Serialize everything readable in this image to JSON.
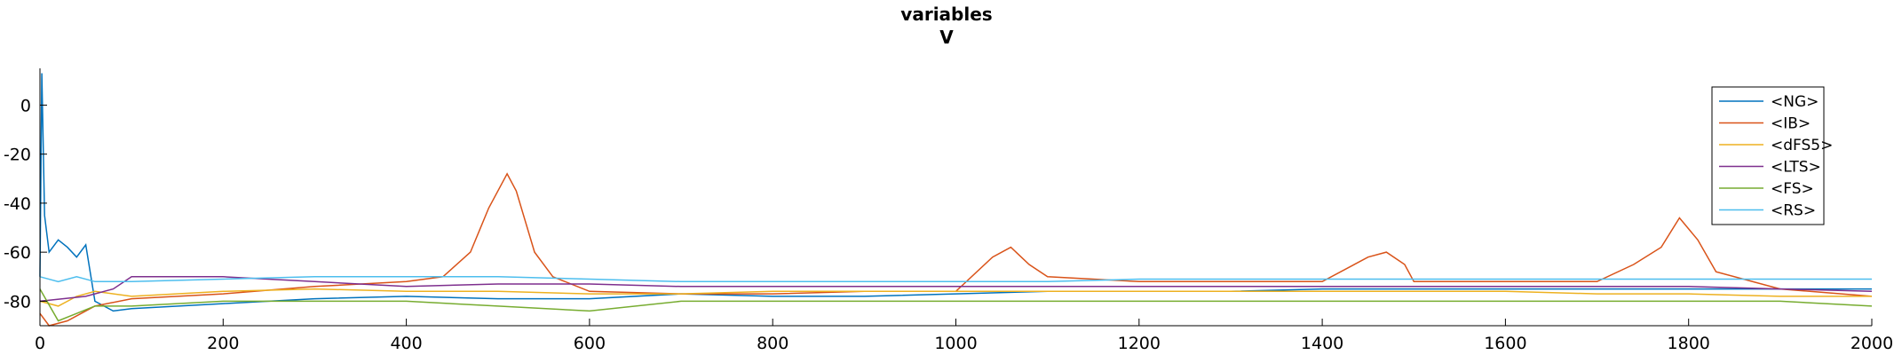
{
  "chart_data": {
    "type": "line",
    "title": "variables",
    "subtitle": "V",
    "xlabel": "",
    "ylabel": "",
    "xlim": [
      0,
      2000
    ],
    "ylim": [
      -90,
      15
    ],
    "xticks": [
      0,
      200,
      400,
      600,
      800,
      1000,
      1200,
      1400,
      1600,
      1800,
      2000
    ],
    "yticks": [
      -80,
      -60,
      -40,
      -20,
      0
    ],
    "ytick_labels": [
      "-80",
      "-60",
      "-40",
      "-20",
      "0"
    ],
    "grid": false,
    "legend_position": "top-right",
    "series": [
      {
        "name": "<NG>",
        "color": "#0072BD",
        "x": [
          0,
          2,
          5,
          10,
          20,
          30,
          40,
          50,
          60,
          80,
          100,
          200,
          300,
          400,
          500,
          600,
          700,
          800,
          900,
          1000,
          1100,
          1200,
          1300,
          1400,
          1500,
          1600,
          1700,
          1800,
          1900,
          2000
        ],
        "y": [
          -70,
          13,
          -45,
          -60,
          -55,
          -58,
          -62,
          -57,
          -80,
          -84,
          -83,
          -81,
          -79,
          -78,
          -79,
          -79,
          -77,
          -78,
          -78,
          -77,
          -76,
          -76,
          -76,
          -75,
          -75,
          -75,
          -75,
          -75,
          -75,
          -75
        ]
      },
      {
        "name": "<IB>",
        "color": "#D95319",
        "x": [
          0,
          10,
          30,
          60,
          100,
          200,
          300,
          400,
          440,
          470,
          490,
          510,
          520,
          540,
          560,
          600,
          700,
          800,
          900,
          1000,
          1040,
          1060,
          1080,
          1100,
          1200,
          1300,
          1400,
          1450,
          1470,
          1490,
          1500,
          1600,
          1700,
          1740,
          1770,
          1790,
          1810,
          1830,
          1900,
          2000
        ],
        "y": [
          -85,
          -90,
          -88,
          -82,
          -79,
          -77,
          -74,
          -72,
          -70,
          -60,
          -42,
          -28,
          -35,
          -60,
          -70,
          -76,
          -77,
          -77,
          -76,
          -76,
          -62,
          -58,
          -65,
          -70,
          -72,
          -72,
          -72,
          -62,
          -60,
          -65,
          -72,
          -72,
          -72,
          -65,
          -58,
          -46,
          -55,
          -68,
          -75,
          -78
        ]
      },
      {
        "name": "<dFS5>",
        "color": "#EDB120",
        "x": [
          0,
          20,
          40,
          60,
          100,
          200,
          300,
          400,
          500,
          600,
          700,
          800,
          900,
          1000,
          1100,
          1200,
          1300,
          1400,
          1500,
          1600,
          1700,
          1800,
          1900,
          2000
        ],
        "y": [
          -80,
          -82,
          -78,
          -76,
          -78,
          -76,
          -75,
          -76,
          -76,
          -77,
          -77,
          -76,
          -76,
          -76,
          -76,
          -76,
          -76,
          -76,
          -76,
          -76,
          -77,
          -77,
          -78,
          -78
        ]
      },
      {
        "name": "<LTS>",
        "color": "#7E2F8E",
        "x": [
          0,
          50,
          80,
          100,
          200,
          300,
          400,
          500,
          600,
          700,
          800,
          900,
          1000,
          1100,
          1200,
          1300,
          1400,
          1500,
          1600,
          1700,
          1800,
          1900,
          2000
        ],
        "y": [
          -80,
          -78,
          -75,
          -70,
          -70,
          -72,
          -74,
          -73,
          -73,
          -74,
          -74,
          -74,
          -74,
          -74,
          -74,
          -74,
          -74,
          -74,
          -74,
          -74,
          -74,
          -75,
          -76
        ]
      },
      {
        "name": "<FS>",
        "color": "#77AC30",
        "x": [
          0,
          20,
          40,
          60,
          100,
          200,
          300,
          400,
          500,
          600,
          700,
          800,
          900,
          1000,
          1100,
          1200,
          1300,
          1400,
          1500,
          1600,
          1700,
          1800,
          1900,
          2000
        ],
        "y": [
          -75,
          -88,
          -85,
          -82,
          -82,
          -80,
          -80,
          -80,
          -82,
          -84,
          -80,
          -80,
          -80,
          -80,
          -80,
          -80,
          -80,
          -80,
          -80,
          -80,
          -80,
          -80,
          -80,
          -82
        ]
      },
      {
        "name": "<RS>",
        "color": "#4DBEEE",
        "x": [
          0,
          20,
          40,
          60,
          100,
          200,
          300,
          400,
          500,
          600,
          700,
          800,
          900,
          1000,
          1100,
          1200,
          1300,
          1400,
          1500,
          1600,
          1700,
          1800,
          1900,
          2000
        ],
        "y": [
          -70,
          -72,
          -70,
          -72,
          -72,
          -71,
          -70,
          -70,
          -70,
          -71,
          -72,
          -72,
          -72,
          -72,
          -72,
          -71,
          -71,
          -71,
          -71,
          -71,
          -71,
          -71,
          -71,
          -71
        ]
      }
    ]
  }
}
